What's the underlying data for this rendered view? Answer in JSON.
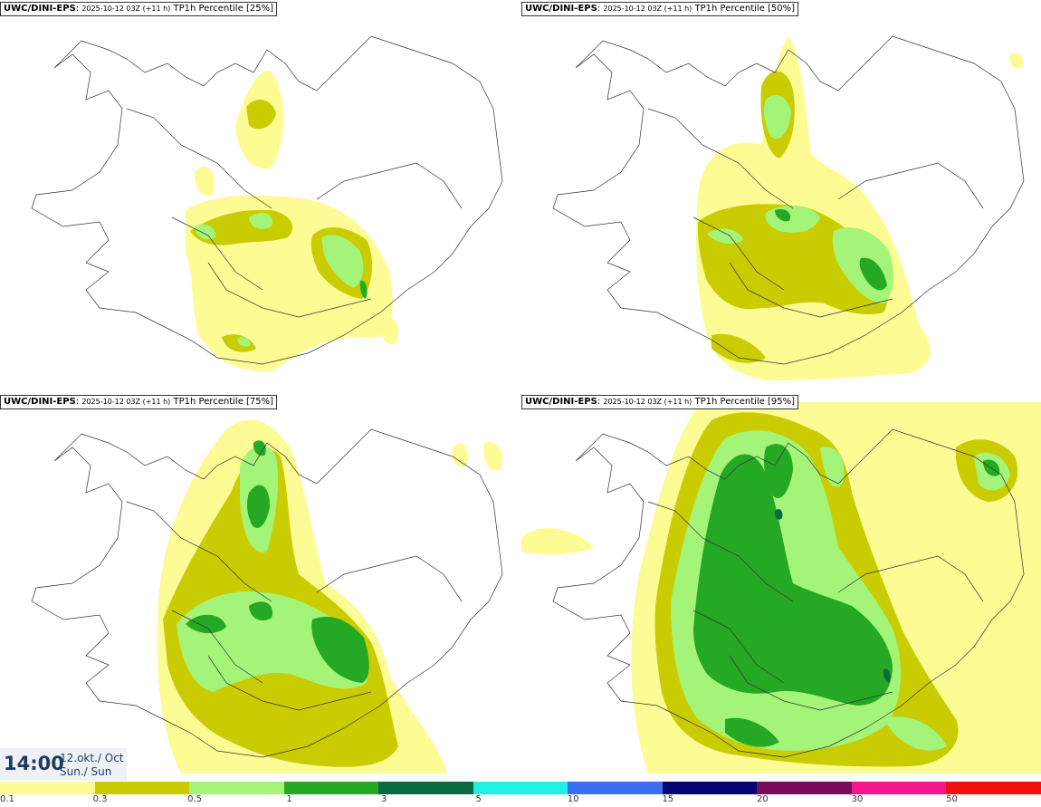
{
  "panels": [
    {
      "model": "UWC/DINI-EPS",
      "run": "2025-10-12 03Z (+11 h)",
      "field": "TP1h Percentile [25%]"
    },
    {
      "model": "UWC/DINI-EPS",
      "run": "2025-10-12 03Z (+11 h)",
      "field": "TP1h Percentile [50%]"
    },
    {
      "model": "UWC/DINI-EPS",
      "run": "2025-10-12 03Z (+11 h)",
      "field": "TP1h Percentile [75%]"
    },
    {
      "model": "UWC/DINI-EPS",
      "run": "2025-10-12 03Z (+11 h)",
      "field": "TP1h Percentile [95%]"
    }
  ],
  "valid_time": {
    "time": "14:00",
    "date": "12.okt./ Oct",
    "day": "Sun./ Sun"
  },
  "legend": {
    "ticks": [
      "0.1",
      "0.3",
      "0.5",
      "1",
      "3",
      "5",
      "10",
      "15",
      "20",
      "30",
      "50"
    ],
    "colors": [
      "#fdfb94",
      "#c9cc00",
      "#a4f47a",
      "#25a823",
      "#0a6a45",
      "#22f0e2",
      "#3a6df0",
      "#06066e",
      "#7a0a5e",
      "#f5158c",
      "#f01010"
    ]
  }
}
